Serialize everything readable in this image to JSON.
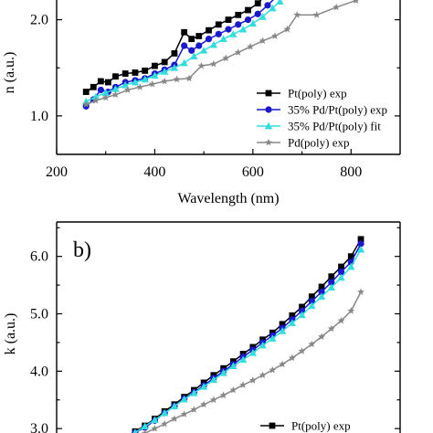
{
  "chart_data": [
    {
      "type": "line",
      "panel_label": "",
      "xlabel": "Wavelength (nm)",
      "ylabel": "n (a.u.)",
      "xlim": [
        200,
        900
      ],
      "ylim": [
        0.6,
        2.3
      ],
      "xticks": [
        200,
        400,
        600,
        800
      ],
      "yticks": [
        1.0,
        2.0
      ],
      "ytick_labels": [
        "1.0",
        "2.0"
      ],
      "legend_position": "bottom-right",
      "series": [
        {
          "name": "Pt(poly) exp",
          "color": "#000000",
          "marker": "square",
          "x": [
            260,
            275,
            290,
            305,
            320,
            340,
            360,
            380,
            400,
            420,
            440,
            460,
            475,
            490,
            510,
            530,
            550,
            570,
            590,
            610,
            630,
            650
          ],
          "y": [
            1.25,
            1.3,
            1.36,
            1.35,
            1.41,
            1.44,
            1.45,
            1.47,
            1.52,
            1.56,
            1.65,
            1.87,
            1.8,
            1.83,
            1.89,
            1.95,
            2.0,
            2.05,
            2.1,
            2.17,
            2.28,
            2.37
          ]
        },
        {
          "name": "35% Pd/Pt(poly) exp",
          "color": "#1a1acc",
          "marker": "circle",
          "x": [
            260,
            275,
            290,
            305,
            320,
            340,
            360,
            380,
            400,
            420,
            440,
            460,
            475,
            490,
            510,
            530,
            550,
            570,
            590,
            610,
            630,
            650
          ],
          "y": [
            1.1,
            1.17,
            1.27,
            1.25,
            1.3,
            1.35,
            1.37,
            1.39,
            1.44,
            1.48,
            1.53,
            1.73,
            1.68,
            1.73,
            1.8,
            1.85,
            1.9,
            1.95,
            2.0,
            2.06,
            2.15,
            2.25
          ]
        },
        {
          "name": "35% Pd/Pt(poly) fit",
          "color": "#33dddd",
          "marker": "triangle",
          "x": [
            260,
            280,
            300,
            320,
            340,
            360,
            380,
            400,
            420,
            440,
            460,
            480,
            500,
            520,
            540,
            560,
            580,
            600,
            620,
            640,
            655
          ],
          "y": [
            1.15,
            1.2,
            1.24,
            1.28,
            1.32,
            1.35,
            1.38,
            1.42,
            1.46,
            1.5,
            1.55,
            1.62,
            1.68,
            1.74,
            1.8,
            1.85,
            1.9,
            1.96,
            2.03,
            2.12,
            2.19
          ]
        },
        {
          "name": "Pd(poly) exp",
          "color": "#888888",
          "marker": "star",
          "x": [
            260,
            280,
            300,
            320,
            345,
            370,
            395,
            420,
            445,
            470,
            495,
            520,
            545,
            570,
            595,
            620,
            645,
            670,
            690,
            730,
            770,
            810
          ],
          "y": [
            1.12,
            1.16,
            1.19,
            1.22,
            1.27,
            1.3,
            1.33,
            1.36,
            1.38,
            1.39,
            1.52,
            1.54,
            1.6,
            1.66,
            1.72,
            1.78,
            1.83,
            1.9,
            2.05,
            2.05,
            2.13,
            2.2
          ]
        }
      ]
    },
    {
      "type": "line",
      "panel_label": "b)",
      "xlabel": "",
      "ylabel": "k (a.u.)",
      "xlim": [
        200,
        900
      ],
      "ylim": [
        2.7,
        6.6
      ],
      "yticks": [
        3.0,
        4.0,
        5.0,
        6.0
      ],
      "ytick_labels": [
        "3.0",
        "4.0",
        "5.0",
        "6.0"
      ],
      "legend_position": "bottom-right",
      "series": [
        {
          "name": "Pt(poly) exp",
          "color": "#000000",
          "marker": "square",
          "x": [
            340,
            360,
            380,
            400,
            420,
            440,
            460,
            480,
            500,
            520,
            540,
            560,
            580,
            600,
            620,
            640,
            660,
            680,
            700,
            720,
            740,
            760,
            780,
            800,
            820
          ],
          "y": [
            2.85,
            2.95,
            3.05,
            3.17,
            3.3,
            3.42,
            3.55,
            3.67,
            3.8,
            3.93,
            4.05,
            4.17,
            4.3,
            4.42,
            4.55,
            4.67,
            4.82,
            4.97,
            5.12,
            5.3,
            5.47,
            5.65,
            5.82,
            6.0,
            6.3
          ]
        },
        {
          "name": "35% Pd/Pt(poly) exp",
          "color": "#1a1acc",
          "marker": "circle",
          "x": [
            340,
            360,
            380,
            400,
            420,
            440,
            460,
            480,
            500,
            520,
            540,
            560,
            580,
            600,
            620,
            640,
            660,
            680,
            700,
            720,
            740,
            760,
            780,
            800,
            820
          ],
          "y": [
            2.83,
            2.93,
            3.02,
            3.14,
            3.27,
            3.39,
            3.52,
            3.63,
            3.75,
            3.88,
            4.0,
            4.12,
            4.25,
            4.37,
            4.5,
            4.62,
            4.75,
            4.9,
            5.05,
            5.22,
            5.38,
            5.55,
            5.73,
            5.9,
            6.22
          ]
        },
        {
          "name": "35% Pd/Pt(poly) fit",
          "color": "#33dddd",
          "marker": "triangle",
          "x": [
            340,
            360,
            380,
            400,
            420,
            440,
            460,
            480,
            500,
            520,
            540,
            560,
            580,
            600,
            620,
            640,
            660,
            680,
            700,
            720,
            740,
            760,
            780,
            800,
            820
          ],
          "y": [
            2.82,
            2.93,
            3.04,
            3.15,
            3.27,
            3.39,
            3.51,
            3.62,
            3.73,
            3.85,
            3.97,
            4.09,
            4.2,
            4.32,
            4.45,
            4.57,
            4.7,
            4.84,
            4.98,
            5.14,
            5.3,
            5.46,
            5.63,
            5.82,
            6.12
          ]
        },
        {
          "name": "Pd(poly) exp",
          "color": "#888888",
          "marker": "star",
          "x": [
            340,
            360,
            380,
            400,
            420,
            440,
            460,
            480,
            500,
            520,
            540,
            560,
            580,
            600,
            620,
            640,
            660,
            680,
            700,
            720,
            740,
            760,
            780,
            800,
            820
          ],
          "y": [
            2.78,
            2.85,
            2.92,
            3.0,
            3.08,
            3.17,
            3.25,
            3.33,
            3.42,
            3.5,
            3.58,
            3.67,
            3.76,
            3.84,
            3.93,
            4.02,
            4.12,
            4.23,
            4.35,
            4.47,
            4.6,
            4.74,
            4.88,
            5.05,
            5.38
          ]
        }
      ]
    }
  ]
}
